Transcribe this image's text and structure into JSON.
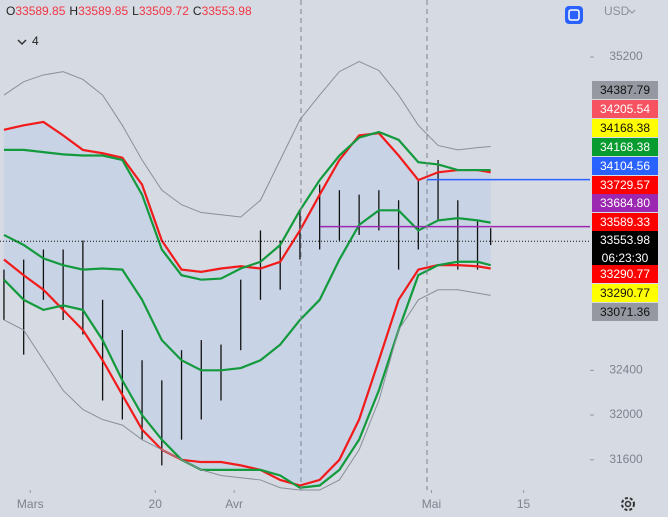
{
  "header": {
    "ohlc": [
      {
        "key": "O",
        "value": "33589.85"
      },
      {
        "key": "H",
        "value": "33589.85"
      },
      {
        "key": "L",
        "value": "33509.72"
      },
      {
        "key": "C",
        "value": "33553.98"
      }
    ],
    "interval": "4",
    "currency": "USD"
  },
  "chart_data": {
    "type": "line",
    "x": [
      -4,
      -1,
      2,
      5,
      8,
      11,
      14,
      17,
      20,
      23,
      26,
      29,
      32,
      35,
      38,
      41,
      44,
      47,
      50,
      53,
      56,
      59,
      62,
      65,
      68,
      70
    ],
    "xlim": [
      -4.6,
      85.1
    ],
    "xticks": [
      {
        "value": 0,
        "label": "Mars"
      },
      {
        "value": 19,
        "label": "20"
      },
      {
        "value": 31,
        "label": "Avr"
      },
      {
        "value": 61,
        "label": "Mai"
      },
      {
        "value": 75,
        "label": "15"
      }
    ],
    "ylim": [
      31330,
      35710
    ],
    "yticks": [
      35200,
      32400,
      32000,
      31600
    ],
    "series": [
      {
        "color": "#8a8f99",
        "values": [
          34860,
          34980,
          35040,
          35070,
          35000,
          34860,
          34590,
          34280,
          34010,
          33880,
          33810,
          33790,
          33770,
          33920,
          34280,
          34640,
          34860,
          35070,
          35160,
          35080,
          34860,
          34590,
          34410,
          34370,
          34390,
          34400
        ]
      },
      {
        "color": "#f21b1b",
        "values": [
          34550,
          34590,
          34620,
          34500,
          34370,
          34340,
          34300,
          34060,
          33560,
          33300,
          33280,
          33310,
          33330,
          33310,
          33370,
          33650,
          33970,
          34280,
          34500,
          34520,
          34320,
          34100,
          34170,
          34190,
          34190,
          34170
        ]
      },
      {
        "color": "#129a3c",
        "values": [
          34370,
          34370,
          34350,
          34330,
          34320,
          34320,
          34280,
          33970,
          33480,
          33250,
          33210,
          33220,
          33310,
          33370,
          33520,
          33830,
          34100,
          34320,
          34480,
          34530,
          34460,
          34260,
          34240,
          34190,
          34190,
          34190
        ]
      },
      {
        "color": "#129a3c",
        "values": [
          33610,
          33520,
          33400,
          33340,
          33300,
          33310,
          33300,
          33030,
          32670,
          32490,
          32400,
          32400,
          32420,
          32490,
          32630,
          32850,
          33030,
          33390,
          33700,
          33830,
          33830,
          33650,
          33740,
          33760,
          33740,
          33720
        ]
      },
      {
        "color": "#f21b1b",
        "values": [
          33390,
          33250,
          33120,
          32940,
          32760,
          32490,
          32180,
          31870,
          31690,
          31600,
          31580,
          31580,
          31550,
          31510,
          31420,
          31370,
          31420,
          31600,
          31960,
          32490,
          33030,
          33300,
          33340,
          33340,
          33330,
          33310
        ]
      },
      {
        "color": "#129a3c",
        "values": [
          33210,
          33030,
          32940,
          32980,
          32940,
          32670,
          32310,
          32000,
          31780,
          31600,
          31510,
          31510,
          31510,
          31510,
          31460,
          31350,
          31370,
          31510,
          31780,
          32220,
          32760,
          33250,
          33340,
          33370,
          33370,
          33340
        ]
      },
      {
        "color": "#8a8f99",
        "values": [
          32850,
          32760,
          32490,
          32220,
          32050,
          31960,
          31910,
          31780,
          31690,
          31600,
          31510,
          31460,
          31440,
          31420,
          31350,
          31330,
          31330,
          31420,
          31690,
          32130,
          32760,
          33030,
          33120,
          33120,
          33090,
          33070
        ]
      }
    ],
    "band_color": "#c8d3e6",
    "bars": {
      "color": "#111111",
      "high": [
        33300,
        33390,
        33480,
        33480,
        33560,
        33030,
        32760,
        32490,
        32310,
        32580,
        32670,
        32630,
        33210,
        33650,
        33560,
        33830,
        34060,
        34010,
        33970,
        34010,
        33920,
        34100,
        34280,
        33920,
        33740,
        33670
      ],
      "low": [
        32850,
        32540,
        33030,
        32850,
        32720,
        32130,
        31960,
        31780,
        31550,
        31780,
        31960,
        32130,
        32580,
        33030,
        33120,
        33390,
        33480,
        33560,
        33610,
        33650,
        33300,
        33480,
        33740,
        33300,
        33300,
        33520
      ]
    },
    "price_labels": [
      {
        "value": 34387.79,
        "label": "34387.79",
        "color": "#9598a1",
        "text_color": "#111111"
      },
      {
        "value": 34205.54,
        "label": "34205.54",
        "color": "#f7525f",
        "text_color": "#ffffff"
      },
      {
        "value": 34168.38,
        "label": "34168.38",
        "color": "#ffff00",
        "text_color": "#111111"
      },
      {
        "value": 34168.38,
        "label": "34168.38",
        "color": "#089c30",
        "text_color": "#ffffff"
      },
      {
        "value": 34104.56,
        "label": "34104.56",
        "color": "#2962ff",
        "text_color": "#ffffff"
      },
      {
        "value": 33729.57,
        "label": "33729.57",
        "color": "#ff0000",
        "text_color": "#ffffff"
      },
      {
        "value": 33684.8,
        "label": "33684.80",
        "color": "#9c27b0",
        "text_color": "#ffffff"
      },
      {
        "value": 33589.33,
        "label": "33589.33",
        "color": "#ff0000",
        "text_color": "#ffffff"
      },
      {
        "value": 33553.98,
        "label": "33553.98",
        "color": "#000000",
        "text_color": "#ffffff"
      },
      {
        "value": 33290.77,
        "label": "33290.77",
        "color": "#ff0000",
        "text_color": "#ffffff"
      },
      {
        "value": 33290.77,
        "label": "33290.77",
        "color": "#ffff00",
        "text_color": "#111111"
      },
      {
        "value": 33071.36,
        "label": "33071.36",
        "color": "#9598a1",
        "text_color": "#111111"
      }
    ],
    "countdown": "06:23:30"
  }
}
